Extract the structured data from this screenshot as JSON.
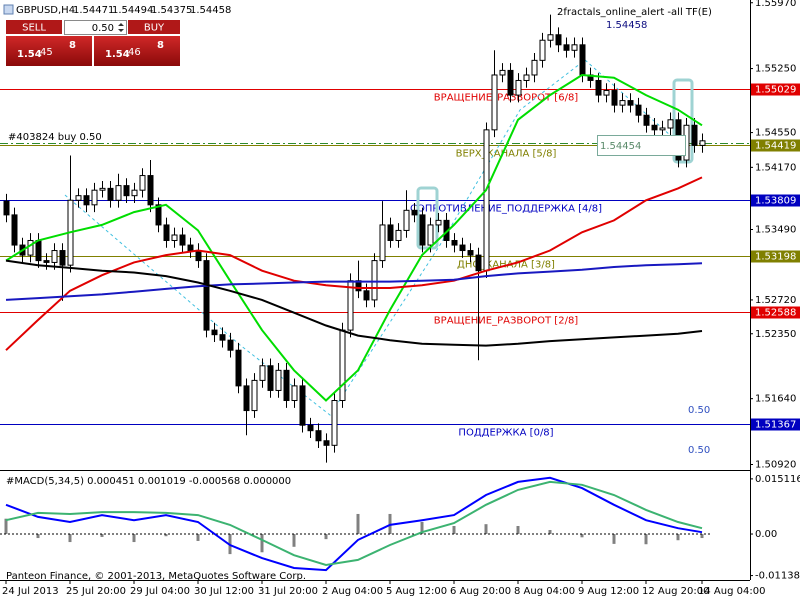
{
  "header": {
    "symbol": "GBPUSD,H4",
    "quotes": [
      "1.54471",
      "1.54494",
      "1.54375",
      "1.54458"
    ],
    "indicator": "2fractals_online_alert -all TF(E)",
    "last_price": "1.54458"
  },
  "trade_panel": {
    "sell": "SELL",
    "buy": "BUY",
    "lots": "0.50",
    "sell_price": {
      "prefix": "1.54",
      "big": "45",
      "small": "8"
    },
    "buy_price": {
      "prefix": "1.54",
      "big": "46",
      "small": "8"
    }
  },
  "order_line": "#403824 buy 0.50",
  "price_box": "1.54454",
  "lot_labels": [
    "0.50",
    "0.50"
  ],
  "copyright": "Panteon Finance, © 2001-2013, MetaQuotes Software Corp.",
  "chart_data": [
    {
      "type": "candlestick",
      "categories": [
        "24 Jul 2013",
        null,
        null,
        null,
        null,
        null,
        null,
        null,
        "25 Jul 20:00",
        null,
        null,
        null,
        null,
        null,
        null,
        null,
        "29 Jul 04:00",
        null,
        null,
        null,
        null,
        null,
        null,
        null,
        "30 Jul 12:00",
        null,
        null,
        null,
        null,
        null,
        null,
        null,
        "31 Jul 20:00",
        null,
        null,
        null,
        null,
        null,
        null,
        null,
        "2 Aug 04:00",
        null,
        null,
        null,
        null,
        null,
        null,
        null,
        "5 Aug 12:00",
        null,
        null,
        null,
        null,
        null,
        null,
        null,
        "6 Aug 20:00",
        null,
        null,
        null,
        null,
        null,
        null,
        null,
        "8 Aug 04:00",
        null,
        null,
        null,
        null,
        null,
        null,
        null,
        "9 Aug 12:00",
        null,
        null,
        null,
        null,
        null,
        null,
        null,
        "12 Aug 20:00",
        null,
        null,
        null,
        null,
        null,
        null,
        "14 Aug 04:00"
      ],
      "open": [
        1.538,
        1.5365,
        1.5332,
        1.5321,
        1.5337,
        1.5315,
        1.5313,
        1.5326,
        1.531,
        1.5381,
        1.5386,
        1.5376,
        1.5392,
        1.5394,
        1.5381,
        1.5397,
        1.5386,
        1.5392,
        1.5408,
        1.5376,
        1.5354,
        1.5337,
        1.5343,
        1.5332,
        1.5326,
        1.5315,
        1.5239,
        1.5234,
        1.5228,
        1.5217,
        1.5178,
        1.5151,
        1.5184,
        1.52,
        1.5173,
        1.5195,
        1.5162,
        1.5178,
        1.5135,
        1.5129,
        1.5118,
        1.5113,
        1.5162,
        1.5239,
        1.5293,
        1.5282,
        1.5272,
        1.5315,
        1.5354,
        1.5337,
        1.5348,
        1.537,
        1.5365,
        1.5332,
        1.5354,
        1.5359,
        1.5337,
        1.5332,
        1.5326,
        1.5321,
        1.5304,
        1.5458,
        1.5518,
        1.5523,
        1.5496,
        1.5512,
        1.5518,
        1.5534,
        1.5556,
        1.5562,
        1.5551,
        1.5545,
        1.5551,
        1.5518,
        1.5512,
        1.5496,
        1.5501,
        1.5485,
        1.549,
        1.5485,
        1.5474,
        1.5463,
        1.5458,
        1.546,
        1.5469,
        1.5425,
        1.5463,
        1.5441
      ],
      "high": [
        1.5388,
        1.5373,
        1.534,
        1.5345,
        1.5345,
        1.5323,
        1.5334,
        1.5334,
        1.543,
        1.5394,
        1.5394,
        1.54,
        1.5402,
        1.5402,
        1.541,
        1.5405,
        1.54,
        1.5416,
        1.5425,
        1.5384,
        1.5362,
        1.5351,
        1.5351,
        1.534,
        1.5334,
        1.5323,
        1.5247,
        1.5242,
        1.5236,
        1.5225,
        1.5186,
        1.5192,
        1.5208,
        1.5208,
        1.5203,
        1.5203,
        1.5186,
        1.5186,
        1.5143,
        1.5137,
        1.5126,
        1.517,
        1.5247,
        1.5301,
        1.5315,
        1.529,
        1.5323,
        1.538,
        1.5362,
        1.5356,
        1.5392,
        1.5378,
        1.5373,
        1.5362,
        1.5367,
        1.5367,
        1.5345,
        1.534,
        1.5334,
        1.5329,
        1.5466,
        1.5545,
        1.5531,
        1.5531,
        1.552,
        1.5526,
        1.5542,
        1.5564,
        1.5584,
        1.557,
        1.5559,
        1.5559,
        1.5559,
        1.5526,
        1.552,
        1.5509,
        1.5509,
        1.5498,
        1.5498,
        1.5493,
        1.5482,
        1.5471,
        1.5468,
        1.5477,
        1.5477,
        1.5471,
        1.5471,
        1.5454
      ],
      "low": [
        1.5357,
        1.5324,
        1.5313,
        1.5313,
        1.5307,
        1.5305,
        1.5305,
        1.5271,
        1.5302,
        1.5373,
        1.5368,
        1.5368,
        1.5384,
        1.5373,
        1.5373,
        1.5378,
        1.5378,
        1.5384,
        1.5368,
        1.5346,
        1.5329,
        1.5329,
        1.5324,
        1.5318,
        1.5307,
        1.5231,
        1.5226,
        1.522,
        1.5209,
        1.517,
        1.5124,
        1.5143,
        1.5176,
        1.5165,
        1.5165,
        1.5154,
        1.5154,
        1.5127,
        1.5121,
        1.511,
        1.5094,
        1.5105,
        1.5154,
        1.5231,
        1.5274,
        1.5264,
        1.5264,
        1.5307,
        1.5329,
        1.5329,
        1.534,
        1.5357,
        1.5324,
        1.5324,
        1.5346,
        1.5329,
        1.5324,
        1.5318,
        1.5313,
        1.5206,
        1.5296,
        1.545,
        1.551,
        1.5488,
        1.5488,
        1.5504,
        1.551,
        1.5526,
        1.5548,
        1.5543,
        1.5537,
        1.5537,
        1.551,
        1.5504,
        1.5488,
        1.5488,
        1.5477,
        1.5477,
        1.5477,
        1.5466,
        1.5455,
        1.545,
        1.545,
        1.5452,
        1.5417,
        1.5417,
        1.5433,
        1.5433
      ],
      "close": [
        1.5365,
        1.5332,
        1.5321,
        1.5337,
        1.5315,
        1.5313,
        1.5326,
        1.531,
        1.5381,
        1.5386,
        1.5376,
        1.5392,
        1.5394,
        1.5381,
        1.5397,
        1.5386,
        1.5392,
        1.5408,
        1.5376,
        1.5354,
        1.5337,
        1.5343,
        1.5332,
        1.5326,
        1.5315,
        1.5239,
        1.5234,
        1.5228,
        1.5217,
        1.5178,
        1.5151,
        1.5184,
        1.52,
        1.5173,
        1.5195,
        1.5162,
        1.5178,
        1.5135,
        1.5129,
        1.5118,
        1.5113,
        1.5162,
        1.5239,
        1.5293,
        1.5282,
        1.5272,
        1.5315,
        1.5354,
        1.5337,
        1.5348,
        1.537,
        1.5365,
        1.5332,
        1.5354,
        1.5359,
        1.5337,
        1.5332,
        1.5326,
        1.5321,
        1.5304,
        1.5458,
        1.5518,
        1.5523,
        1.5496,
        1.5512,
        1.5518,
        1.5534,
        1.5556,
        1.5562,
        1.5551,
        1.5545,
        1.5551,
        1.5518,
        1.5512,
        1.5496,
        1.5501,
        1.5485,
        1.549,
        1.5485,
        1.5474,
        1.5463,
        1.5458,
        1.546,
        1.5469,
        1.5425,
        1.5463,
        1.5441,
        1.5446
      ],
      "bull_color": "#ffffff",
      "bear_color": "#000000",
      "ylim": [
        1.5086,
        1.56
      ],
      "yticks": [
        {
          "value": 1.5597,
          "label": "1.55970"
        },
        {
          "value": 1.5525,
          "label": "1.55250"
        },
        {
          "value": 1.5455,
          "label": "1.54550"
        },
        {
          "value": 1.5417,
          "label": "1.54170"
        },
        {
          "value": 1.5349,
          "label": "1.53490"
        },
        {
          "value": 1.5272,
          "label": "1.52720"
        },
        {
          "value": 1.5235,
          "label": "1.52350"
        },
        {
          "value": 1.5164,
          "label": "1.51640"
        },
        {
          "value": 1.5092,
          "label": "1.50920"
        }
      ],
      "line_x": [
        0,
        4,
        8,
        12,
        16,
        20,
        24,
        28,
        32,
        36,
        40,
        44,
        48,
        52,
        56,
        60,
        64,
        68,
        72,
        76,
        80,
        84,
        87
      ],
      "lines": [
        {
          "color": "#00dd00",
          "values": [
            1.5315,
            1.5337,
            1.5346,
            1.5354,
            1.5368,
            1.5376,
            1.5348,
            1.5293,
            1.5239,
            1.5195,
            1.5162,
            1.5195,
            1.5261,
            1.5321,
            1.5354,
            1.5392,
            1.5469,
            1.5496,
            1.5518,
            1.5515,
            1.5496,
            1.548,
            1.5463
          ]
        },
        {
          "color": "#e00000",
          "values": [
            1.5217,
            1.525,
            1.5282,
            1.5299,
            1.5313,
            1.5321,
            1.5326,
            1.5321,
            1.5304,
            1.5293,
            1.5288,
            1.5285,
            1.5285,
            1.5288,
            1.5293,
            1.5304,
            1.5313,
            1.5326,
            1.5346,
            1.5359,
            1.5381,
            1.5394,
            1.5406
          ]
        },
        {
          "color": "#1818c0",
          "values": [
            1.5272,
            1.5274,
            1.5276,
            1.5278,
            1.5281,
            1.5284,
            1.5287,
            1.5289,
            1.529,
            1.5291,
            1.5292,
            1.5292,
            1.5292,
            1.5293,
            1.5294,
            1.5298,
            1.5301,
            1.5303,
            1.5305,
            1.5308,
            1.531,
            1.5311,
            1.5312
          ]
        },
        {
          "color": "#000000",
          "values": [
            1.5315,
            1.531,
            1.5307,
            1.5304,
            1.5302,
            1.5298,
            1.5291,
            1.5282,
            1.5272,
            1.5258,
            1.5244,
            1.5233,
            1.5228,
            1.5224,
            1.5223,
            1.5222,
            1.5224,
            1.5227,
            1.5229,
            1.5231,
            1.5233,
            1.5235,
            1.5238
          ]
        }
      ],
      "levels": [
        {
          "name": "ВРАЩЕНИЕ_РАЗВОРОТ [6/8]",
          "value": 1.55029,
          "color": "#e00000"
        },
        {
          "name": "ВЕРХ_КАНАЛА [5/8]",
          "value": 1.54419,
          "color": "#808000"
        },
        {
          "name": "СОПРОТИВЛЕНИЕ_ПОДДЕРЖКА [4/8]",
          "value": 1.53809,
          "color": "#0000c0"
        },
        {
          "name": "ДНО_КАНАЛА [3/8]",
          "value": 1.53198,
          "color": "#808000"
        },
        {
          "name": "ВРАЩЕНИЕ_РАЗВОРОТ [2/8]",
          "value": 1.52588,
          "color": "#e00000"
        },
        {
          "name": "ПОДДЕРЖКА [0/8]",
          "value": 1.51367,
          "color": "#0000c0"
        }
      ]
    },
    {
      "type": "macd",
      "title": "#MACD(5,34,5) 0.000451 0.001019 -0.000568 0.000000",
      "x": [
        0,
        4,
        8,
        12,
        16,
        20,
        24,
        28,
        32,
        36,
        40,
        44,
        48,
        52,
        56,
        60,
        64,
        68,
        72,
        76,
        80,
        84,
        87
      ],
      "histogram": {
        "color": "#808080",
        "values": [
          0.0042,
          -0.0011,
          -0.0022,
          -0.0008,
          -0.0022,
          -0.0006,
          -0.0019,
          -0.0055,
          -0.005,
          -0.0035,
          -0.0014,
          0.0055,
          0.0055,
          0.0033,
          0.0022,
          0.0027,
          0.0022,
          0.0011,
          -0.0009,
          -0.0027,
          -0.0028,
          -0.0017,
          -0.0011
        ]
      },
      "series": [
        {
          "color": "#0000ff",
          "values": [
            0.008,
            0.0047,
            0.0033,
            0.0052,
            0.0038,
            0.0052,
            0.0033,
            -0.003,
            -0.0066,
            -0.0093,
            -0.0099,
            -0.0016,
            0.0025,
            0.0038,
            0.0052,
            0.0107,
            0.0143,
            0.0154,
            0.0126,
            0.008,
            0.0038,
            0.0016,
            0.0005
          ]
        },
        {
          "color": "#3cb371",
          "values": [
            0.0038,
            0.0058,
            0.0055,
            0.006,
            0.006,
            0.0058,
            0.0052,
            0.0025,
            -0.0016,
            -0.0058,
            -0.0085,
            -0.0071,
            -0.003,
            0.0005,
            0.003,
            0.008,
            0.0121,
            0.0143,
            0.0135,
            0.0107,
            0.0066,
            0.0033,
            0.0016
          ]
        }
      ],
      "ylim": [
        -0.0126,
        0.017
      ],
      "yticks": [
        0.015116,
        {
          "value": 0,
          "label": "0.00"
        },
        -0.011384
      ]
    }
  ]
}
